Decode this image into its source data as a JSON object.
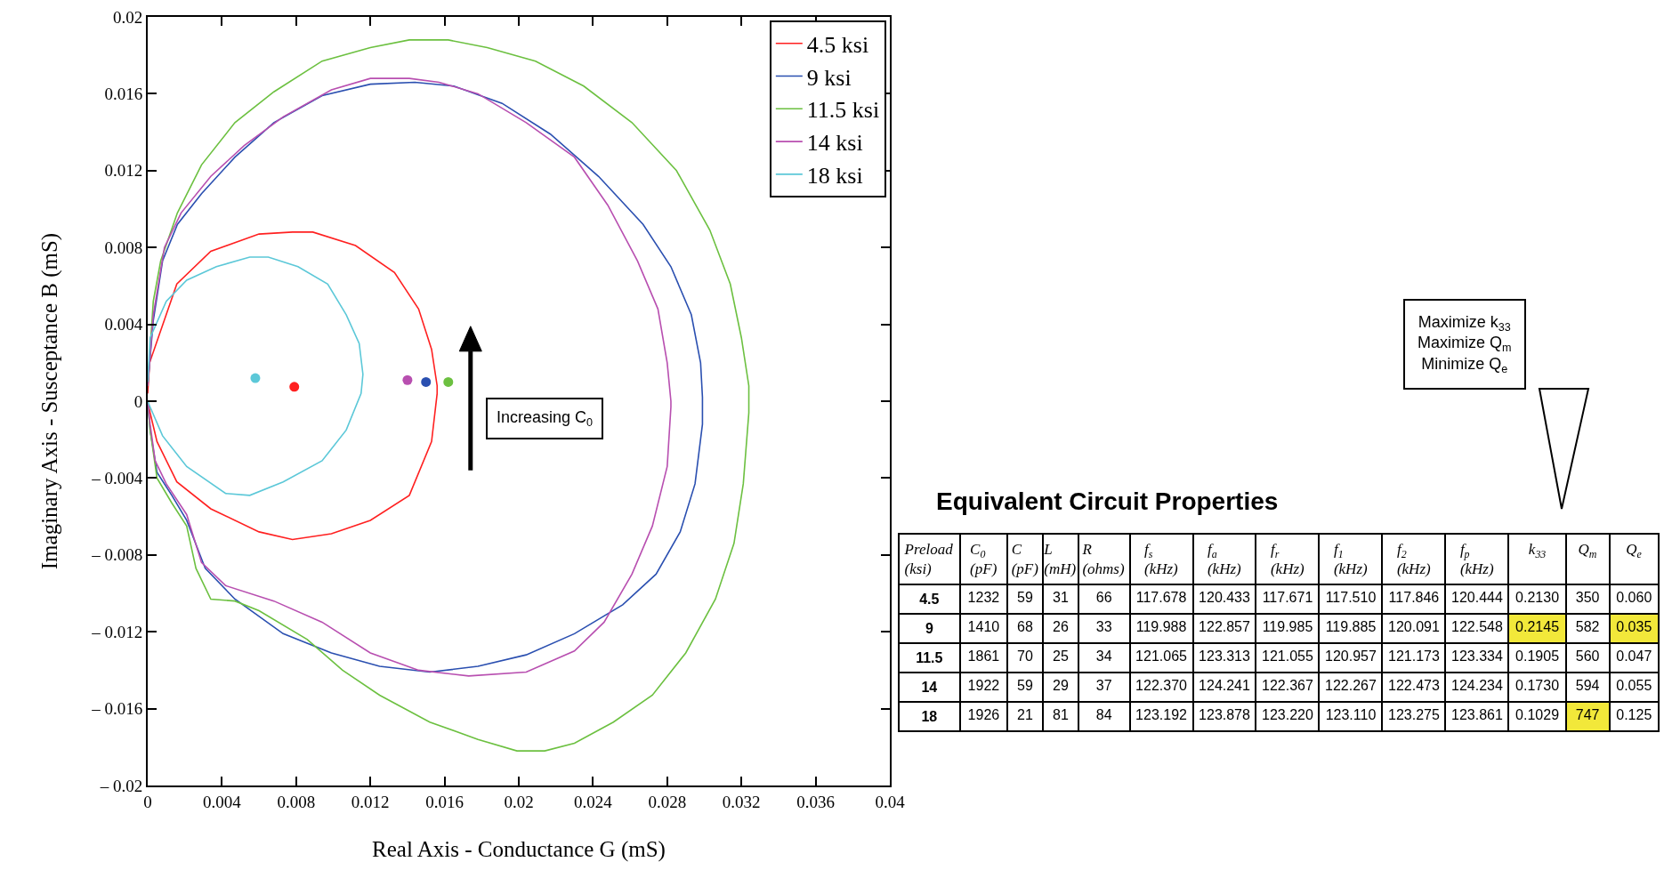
{
  "chart_data": [
    {
      "type": "line",
      "xlabel": "Real Axis - Conductance G (mS)",
      "ylabel": "Imaginary Axis - Susceptance B (mS)",
      "xlim": [
        0,
        0.04
      ],
      "xticks": [
        0,
        0.004,
        0.008,
        0.012,
        0.016,
        0.02,
        0.024,
        0.028,
        0.032,
        0.036,
        0.04
      ],
      "ylim": [
        -0.02,
        0.02
      ],
      "yticks": [
        {
          "value": -0.02,
          "label": "– 0.02"
        },
        {
          "value": -0.016,
          "label": "– 0.016"
        },
        {
          "value": -0.012,
          "label": "– 0.012"
        },
        {
          "value": -0.008,
          "label": "– 0.008"
        },
        {
          "value": -0.004,
          "label": "– 0.004"
        },
        0,
        0.004,
        0.008,
        0.012,
        0.016,
        0.02
      ],
      "grid": false,
      "legend": "top right",
      "line_style": "solid",
      "marker": "none",
      "annotations": [
        "Increasing C$_{0}$"
      ],
      "series": [
        {
          "name": "4.5 ksi",
          "color": "#ff2020",
          "x": [
            0,
            0.0001,
            0.00157,
            0.0034,
            0.006,
            0.0078,
            0.0089,
            0.0112,
            0.0133,
            0.0146,
            0.0153,
            0.0156,
            0.0156,
            0.0153,
            0.0141,
            0.012,
            0.0099,
            0.0078,
            0.006,
            0.0034,
            0.00157,
            0.0005,
            0.00013,
            0
          ],
          "values": [
            0.0004,
            0.002,
            0.0061,
            0.0078,
            0.0087,
            0.0088,
            0.0088,
            0.0081,
            0.0067,
            0.0048,
            0.0027,
            0.0008,
            0.0004,
            -0.0021,
            -0.0049,
            -0.0062,
            -0.0069,
            -0.0072,
            -0.0068,
            -0.0056,
            -0.0042,
            -0.0021,
            -0.0006,
            0
          ]
        },
        {
          "name": "9 ksi",
          "color": "#2a4fb0",
          "x": [
            0,
            0.0003,
            0.0008,
            0.0016,
            0.0029,
            0.0047,
            0.0068,
            0.0094,
            0.012,
            0.0144,
            0.0165,
            0.0191,
            0.0217,
            0.0243,
            0.0267,
            0.0282,
            0.0293,
            0.0298,
            0.0299,
            0.0299,
            0.0295,
            0.0287,
            0.0274,
            0.0256,
            0.023,
            0.0204,
            0.0178,
            0.0152,
            0.0125,
            0.0099,
            0.0073,
            0.0047,
            0.0031,
            0.0021,
            0.0013,
            0.0005,
            0.00013,
            0
          ],
          "values": [
            0.0008,
            0.0042,
            0.0073,
            0.0092,
            0.0108,
            0.0127,
            0.0145,
            0.0159,
            0.0165,
            0.0166,
            0.0164,
            0.0155,
            0.0139,
            0.0117,
            0.0092,
            0.007,
            0.0045,
            0.002,
            0.0002,
            -0.0012,
            -0.0043,
            -0.0068,
            -0.009,
            -0.0106,
            -0.0121,
            -0.0132,
            -0.0138,
            -0.0141,
            -0.0138,
            -0.0131,
            -0.0121,
            -0.0103,
            -0.0087,
            -0.0062,
            -0.0049,
            -0.0037,
            -0.0015,
            0
          ]
        },
        {
          "name": "11.5 ksi",
          "color": "#6cc040",
          "x": [
            0,
            0.0003,
            0.0007,
            0.0016,
            0.0029,
            0.0047,
            0.0068,
            0.0094,
            0.012,
            0.0141,
            0.0162,
            0.0183,
            0.0209,
            0.0235,
            0.0261,
            0.0285,
            0.0303,
            0.0314,
            0.032,
            0.0324,
            0.0324,
            0.0321,
            0.0316,
            0.0306,
            0.029,
            0.0272,
            0.0251,
            0.023,
            0.0214,
            0.0199,
            0.0178,
            0.0152,
            0.0125,
            0.0105,
            0.0086,
            0.006,
            0.0047,
            0.0034,
            0.0026,
            0.0021,
            0.0013,
            0.0005,
            0.00013,
            0
          ],
          "values": [
            0.0008,
            0.0052,
            0.0073,
            0.0098,
            0.0123,
            0.0145,
            0.0161,
            0.0177,
            0.0184,
            0.0188,
            0.0188,
            0.0184,
            0.0177,
            0.0164,
            0.0145,
            0.012,
            0.0089,
            0.0061,
            0.0033,
            0.0008,
            -0.0006,
            -0.0043,
            -0.0074,
            -0.0103,
            -0.0131,
            -0.0153,
            -0.0167,
            -0.0178,
            -0.0182,
            -0.0182,
            -0.0176,
            -0.0167,
            -0.0153,
            -0.014,
            -0.0124,
            -0.0109,
            -0.0104,
            -0.0103,
            -0.0087,
            -0.0065,
            -0.0053,
            -0.004,
            -0.0015,
            0
          ]
        },
        {
          "name": "14 ksi",
          "color": "#b84fb0",
          "x": [
            0,
            0.0003,
            0.0009,
            0.0018,
            0.0034,
            0.0052,
            0.0073,
            0.0099,
            0.012,
            0.0141,
            0.0157,
            0.0178,
            0.0204,
            0.023,
            0.0248,
            0.0264,
            0.0275,
            0.028,
            0.0282,
            0.0282,
            0.028,
            0.0272,
            0.0261,
            0.0246,
            0.023,
            0.0204,
            0.0173,
            0.0146,
            0.012,
            0.0094,
            0.0068,
            0.0042,
            0.0029,
            0.0021,
            0.001,
            0.0004,
            0.00013,
            0
          ],
          "values": [
            0.0008,
            0.0045,
            0.008,
            0.0098,
            0.0117,
            0.0133,
            0.0148,
            0.0162,
            0.0168,
            0.0168,
            0.0166,
            0.016,
            0.0145,
            0.0127,
            0.0102,
            0.0073,
            0.0048,
            0.002,
            0,
            -0.0003,
            -0.0034,
            -0.0065,
            -0.009,
            -0.0115,
            -0.013,
            -0.0141,
            -0.0143,
            -0.014,
            -0.0131,
            -0.0115,
            -0.0104,
            -0.0096,
            -0.0084,
            -0.0059,
            -0.0043,
            -0.0031,
            -0.0012,
            0
          ]
        },
        {
          "name": "18 ksi",
          "color": "#5cc8d8",
          "x": [
            0,
            0.00013,
            0.001,
            0.0021,
            0.0037,
            0.0055,
            0.0065,
            0.0081,
            0.0097,
            0.0107,
            0.0114,
            0.0116,
            0.0115,
            0.0107,
            0.0094,
            0.0073,
            0.0055,
            0.0042,
            0.0021,
            0.0008,
            0.00013,
            0
          ],
          "values": [
            0.001,
            0.0033,
            0.0052,
            0.0063,
            0.007,
            0.0075,
            0.0075,
            0.007,
            0.0061,
            0.0045,
            0.003,
            0.0014,
            0.0004,
            -0.0015,
            -0.0031,
            -0.0042,
            -0.0049,
            -0.0048,
            -0.0034,
            -0.0018,
            -0.0003,
            0
          ]
        },
        {
          "type": "scatter",
          "marker": "circle",
          "colors": [
            "#5cc8d8",
            "#ff2020",
            "#b84fb0",
            "#2a4fb0",
            "#6cc040"
          ],
          "x": [
            0.0058,
            0.0079,
            0.014,
            0.015,
            0.0162
          ],
          "values": [
            0.0012,
            0.00075,
            0.0011,
            0.001,
            0.001
          ]
        }
      ]
    },
    {
      "type": "other",
      "title": "Equivalent Circuit Properties",
      "categories": [
        "Preload\n(ksi)",
        "C$_{0}$\n(pF)",
        "C\n(pF)",
        "L\n(mH)",
        "R\n(ohms)",
        "f$_{s}$\n(kHz)",
        "f$_{a}$\n(kHz)",
        "f$_{r}$\n(kHz)",
        "f$_{1}$\n(kHz)",
        "f$_{2}$\n(kHz)",
        "f$_{p}$\n(kHz)",
        "k$_{33}$",
        "Q$_{m}$",
        "Q$_{e}$"
      ],
      "cells": [
        [
          "4.5",
          "1232",
          "59",
          "31",
          "66",
          "117.678",
          "120.433",
          "117.671",
          "117.510",
          "117.846",
          "120.444",
          "0.2130",
          "350",
          "0.060"
        ],
        [
          "9",
          "1410",
          "68",
          "26",
          "33",
          "119.988",
          "122.857",
          "119.985",
          "119.885",
          "120.091",
          "122.548",
          "0.2145",
          "582",
          "0.035"
        ],
        [
          "11.5",
          "1861",
          "70",
          "25",
          "34",
          "121.065",
          "123.313",
          "121.055",
          "120.957",
          "121.173",
          "123.334",
          "0.1905",
          "560",
          "0.047"
        ],
        [
          "14",
          "1922",
          "59",
          "29",
          "37",
          "122.370",
          "124.241",
          "122.367",
          "122.267",
          "122.473",
          "124.234",
          "0.1730",
          "594",
          "0.055"
        ],
        [
          "18",
          "1926",
          "21",
          "81",
          "84",
          "123.192",
          "123.878",
          "123.220",
          "123.110",
          "123.275",
          "123.861",
          "0.1029",
          "747",
          "0.125"
        ]
      ],
      "colors": [
        [
          null,
          null,
          null,
          null,
          null,
          null,
          null,
          null,
          null,
          null,
          null,
          null,
          null,
          null
        ],
        [
          null,
          null,
          null,
          null,
          null,
          null,
          null,
          null,
          null,
          null,
          null,
          "#f2e83a",
          null,
          "#f2e83a"
        ],
        [
          null,
          null,
          null,
          null,
          null,
          null,
          null,
          null,
          null,
          null,
          null,
          null,
          null,
          null
        ],
        [
          null,
          null,
          null,
          null,
          null,
          null,
          null,
          null,
          null,
          null,
          null,
          null,
          null,
          null
        ],
        [
          null,
          null,
          null,
          null,
          null,
          null,
          null,
          null,
          null,
          null,
          null,
          null,
          "#f2e83a",
          null
        ]
      ],
      "annotations": [
        "Maximize k$_{33}$\nMaximize Q$_{m}$\nMinimize Q$_{e}$"
      ]
    }
  ]
}
